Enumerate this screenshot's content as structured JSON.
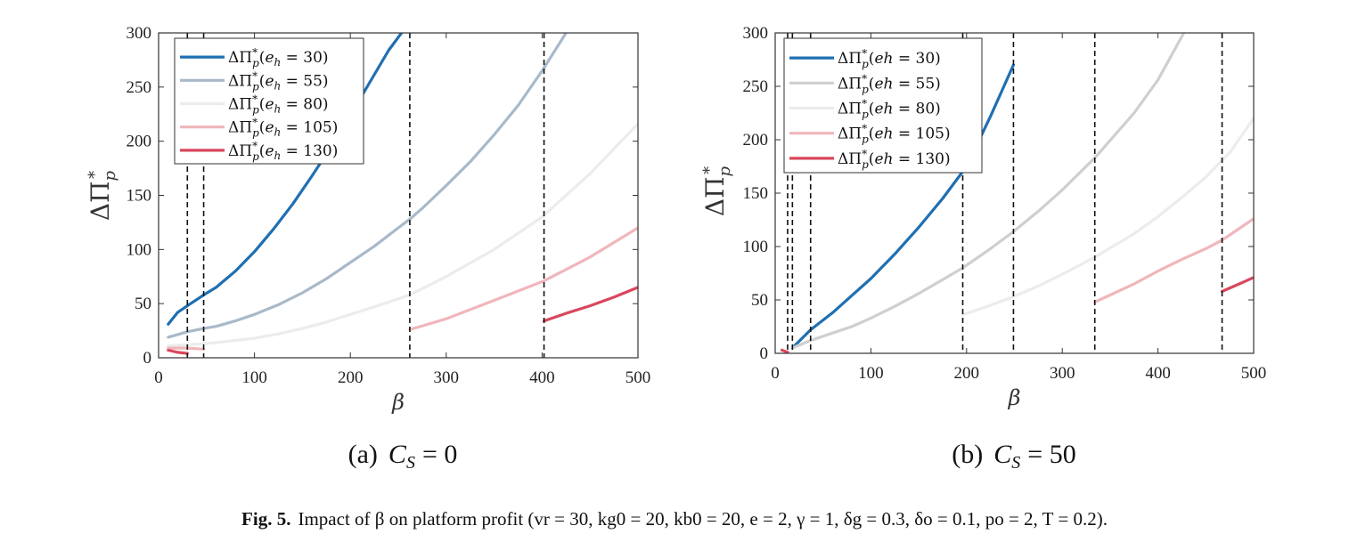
{
  "chart_data": [
    {
      "type": "line",
      "panel_label": "(a)",
      "subtitle_var": "C",
      "subtitle_sub": "S",
      "subtitle_value": "= 0",
      "xlabel": "β",
      "ylabel_base": "ΔΠ",
      "ylabel_sub": "p",
      "ylabel_sup": "*",
      "xlim": [
        0,
        500
      ],
      "ylim": [
        0,
        300
      ],
      "xticks": [
        0,
        100,
        200,
        300,
        400,
        500
      ],
      "yticks": [
        0,
        50,
        100,
        150,
        200,
        250,
        300
      ],
      "grid": false,
      "legend_position": "top-left",
      "vlines": [
        30,
        47,
        262,
        402
      ],
      "series": [
        {
          "name": "ΔΠ*p(eh = 30)",
          "legend_html": "e_h = 30",
          "color": "#1f6fb2",
          "segments": [
            {
              "x": [
                10,
                20,
                30,
                47,
                60,
                80,
                100,
                120,
                140,
                160,
                180,
                200,
                220,
                240,
                260
              ],
              "y": [
                31,
                42,
                48,
                58,
                65,
                80,
                98,
                119,
                142,
                168,
                195,
                224,
                254,
                284,
                308
              ]
            }
          ]
        },
        {
          "name": "ΔΠ*p(eh = 55)",
          "legend_html": "e_h = 55",
          "color": "#a8b9c9",
          "segments": [
            {
              "x": [
                10,
                30,
                47,
                60,
                80,
                100,
                125,
                150,
                175,
                200,
                225,
                250,
                262,
                275,
                300,
                325,
                350,
                375,
                400,
                425
              ],
              "y": [
                19,
                24,
                27,
                29,
                34,
                40,
                49,
                60,
                73,
                88,
                103,
                120,
                128,
                138,
                159,
                181,
                206,
                233,
                265,
                300
              ]
            }
          ]
        },
        {
          "name": "ΔΠ*p(eh = 80)",
          "legend_html": "e_h = 80",
          "color": "#ececec",
          "segments": [
            {
              "x": [
                10,
                30,
                47,
                60,
                80,
                100,
                125,
                150,
                175,
                200,
                225,
                262,
                300,
                350,
                400,
                450,
                500
              ],
              "y": [
                11,
                12,
                13,
                14,
                16,
                18,
                22,
                27,
                33,
                40,
                47,
                58,
                75,
                100,
                130,
                170,
                216
              ]
            }
          ]
        },
        {
          "name": "ΔΠ*p(eh = 105)",
          "legend_html": "e_h = 105",
          "color": "#f0b6bb",
          "segments": [
            {
              "x": [
                10,
                20,
                30,
                47
              ],
              "y": [
                9,
                9,
                9,
                8
              ]
            },
            {
              "x": [
                262,
                300,
                350,
                402,
                450,
                500
              ],
              "y": [
                26,
                36,
                53,
                71,
                93,
                120
              ]
            }
          ]
        },
        {
          "name": "ΔΠ*p(eh = 130)",
          "legend_html": "e_h = 130",
          "color": "#d9475d",
          "segments": [
            {
              "x": [
                10,
                20,
                30
              ],
              "y": [
                7,
                5,
                4
              ]
            },
            {
              "x": [
                402,
                425,
                450,
                475,
                500
              ],
              "y": [
                34,
                41,
                48,
                56,
                65
              ]
            }
          ]
        }
      ]
    },
    {
      "type": "line",
      "panel_label": "(b)",
      "subtitle_var": "C",
      "subtitle_sub": "S",
      "subtitle_value": "= 50",
      "xlabel": "β",
      "ylabel_base": "ΔΠ",
      "ylabel_sub": "p",
      "ylabel_sup": "*",
      "xlim": [
        0,
        500
      ],
      "ylim": [
        0,
        300
      ],
      "xticks": [
        0,
        100,
        200,
        300,
        400,
        500
      ],
      "yticks": [
        0,
        50,
        100,
        150,
        200,
        250,
        300
      ],
      "grid": false,
      "legend_position": "top-left",
      "vlines": [
        13,
        18,
        37,
        196,
        249,
        334,
        467
      ],
      "series": [
        {
          "name": "ΔΠ*p(eh = 30)",
          "legend_html": "eh = 30",
          "color": "#1f6fb2",
          "segments": [
            {
              "x": [
                18,
                37,
                60,
                80,
                100,
                125,
                150,
                175,
                200,
                225,
                249
              ],
              "y": [
                5,
                22,
                38,
                54,
                70,
                93,
                118,
                145,
                175,
                222,
                270
              ]
            }
          ]
        },
        {
          "name": "ΔΠ*p(eh = 55)",
          "legend_html": "eh = 55",
          "color": "#cfcfcf",
          "segments": [
            {
              "x": [
                18,
                37,
                60,
                80,
                100,
                125,
                150,
                175,
                196,
                225,
                249,
                275,
                300,
                334,
                375,
                400,
                427
              ],
              "y": [
                5,
                12,
                19,
                25,
                33,
                44,
                56,
                69,
                80,
                98,
                114,
                133,
                153,
                183,
                225,
                256,
                300
              ]
            }
          ]
        },
        {
          "name": "ΔΠ*p(eh = 80)",
          "legend_html": "eh = 80",
          "color": "#ececec",
          "segments": [
            {
              "x": [
                196,
                225,
                249,
                275,
                300,
                334,
                375,
                400,
                425,
                450,
                475,
                500
              ],
              "y": [
                36,
                45,
                53,
                63,
                74,
                90,
                112,
                128,
                146,
                165,
                188,
                220
              ]
            }
          ]
        },
        {
          "name": "ΔΠ*p(eh = 105)",
          "legend_html": "eh = 105",
          "color": "#f0b6bb",
          "segments": [
            {
              "x": [
                334,
                375,
                400,
                425,
                450,
                467,
                500
              ],
              "y": [
                48,
                65,
                77,
                88,
                98,
                106,
                126
              ]
            }
          ]
        },
        {
          "name": "ΔΠ*p(eh = 130)",
          "legend_html": "eh = 130",
          "color": "#d9475d",
          "segments": [
            {
              "x": [
                7,
                10,
                13
              ],
              "y": [
                3,
                2,
                1
              ]
            },
            {
              "x": [
                467,
                485,
                500
              ],
              "y": [
                58,
                65,
                71
              ]
            }
          ]
        }
      ]
    }
  ],
  "caption": {
    "label": "Fig. 5.",
    "text": "Impact of β on platform profit (vr = 30, kg0 = 20, kb0 = 20, e = 2, γ = 1, δg = 0.3, δo = 0.1, po = 2, T = 0.2)."
  }
}
